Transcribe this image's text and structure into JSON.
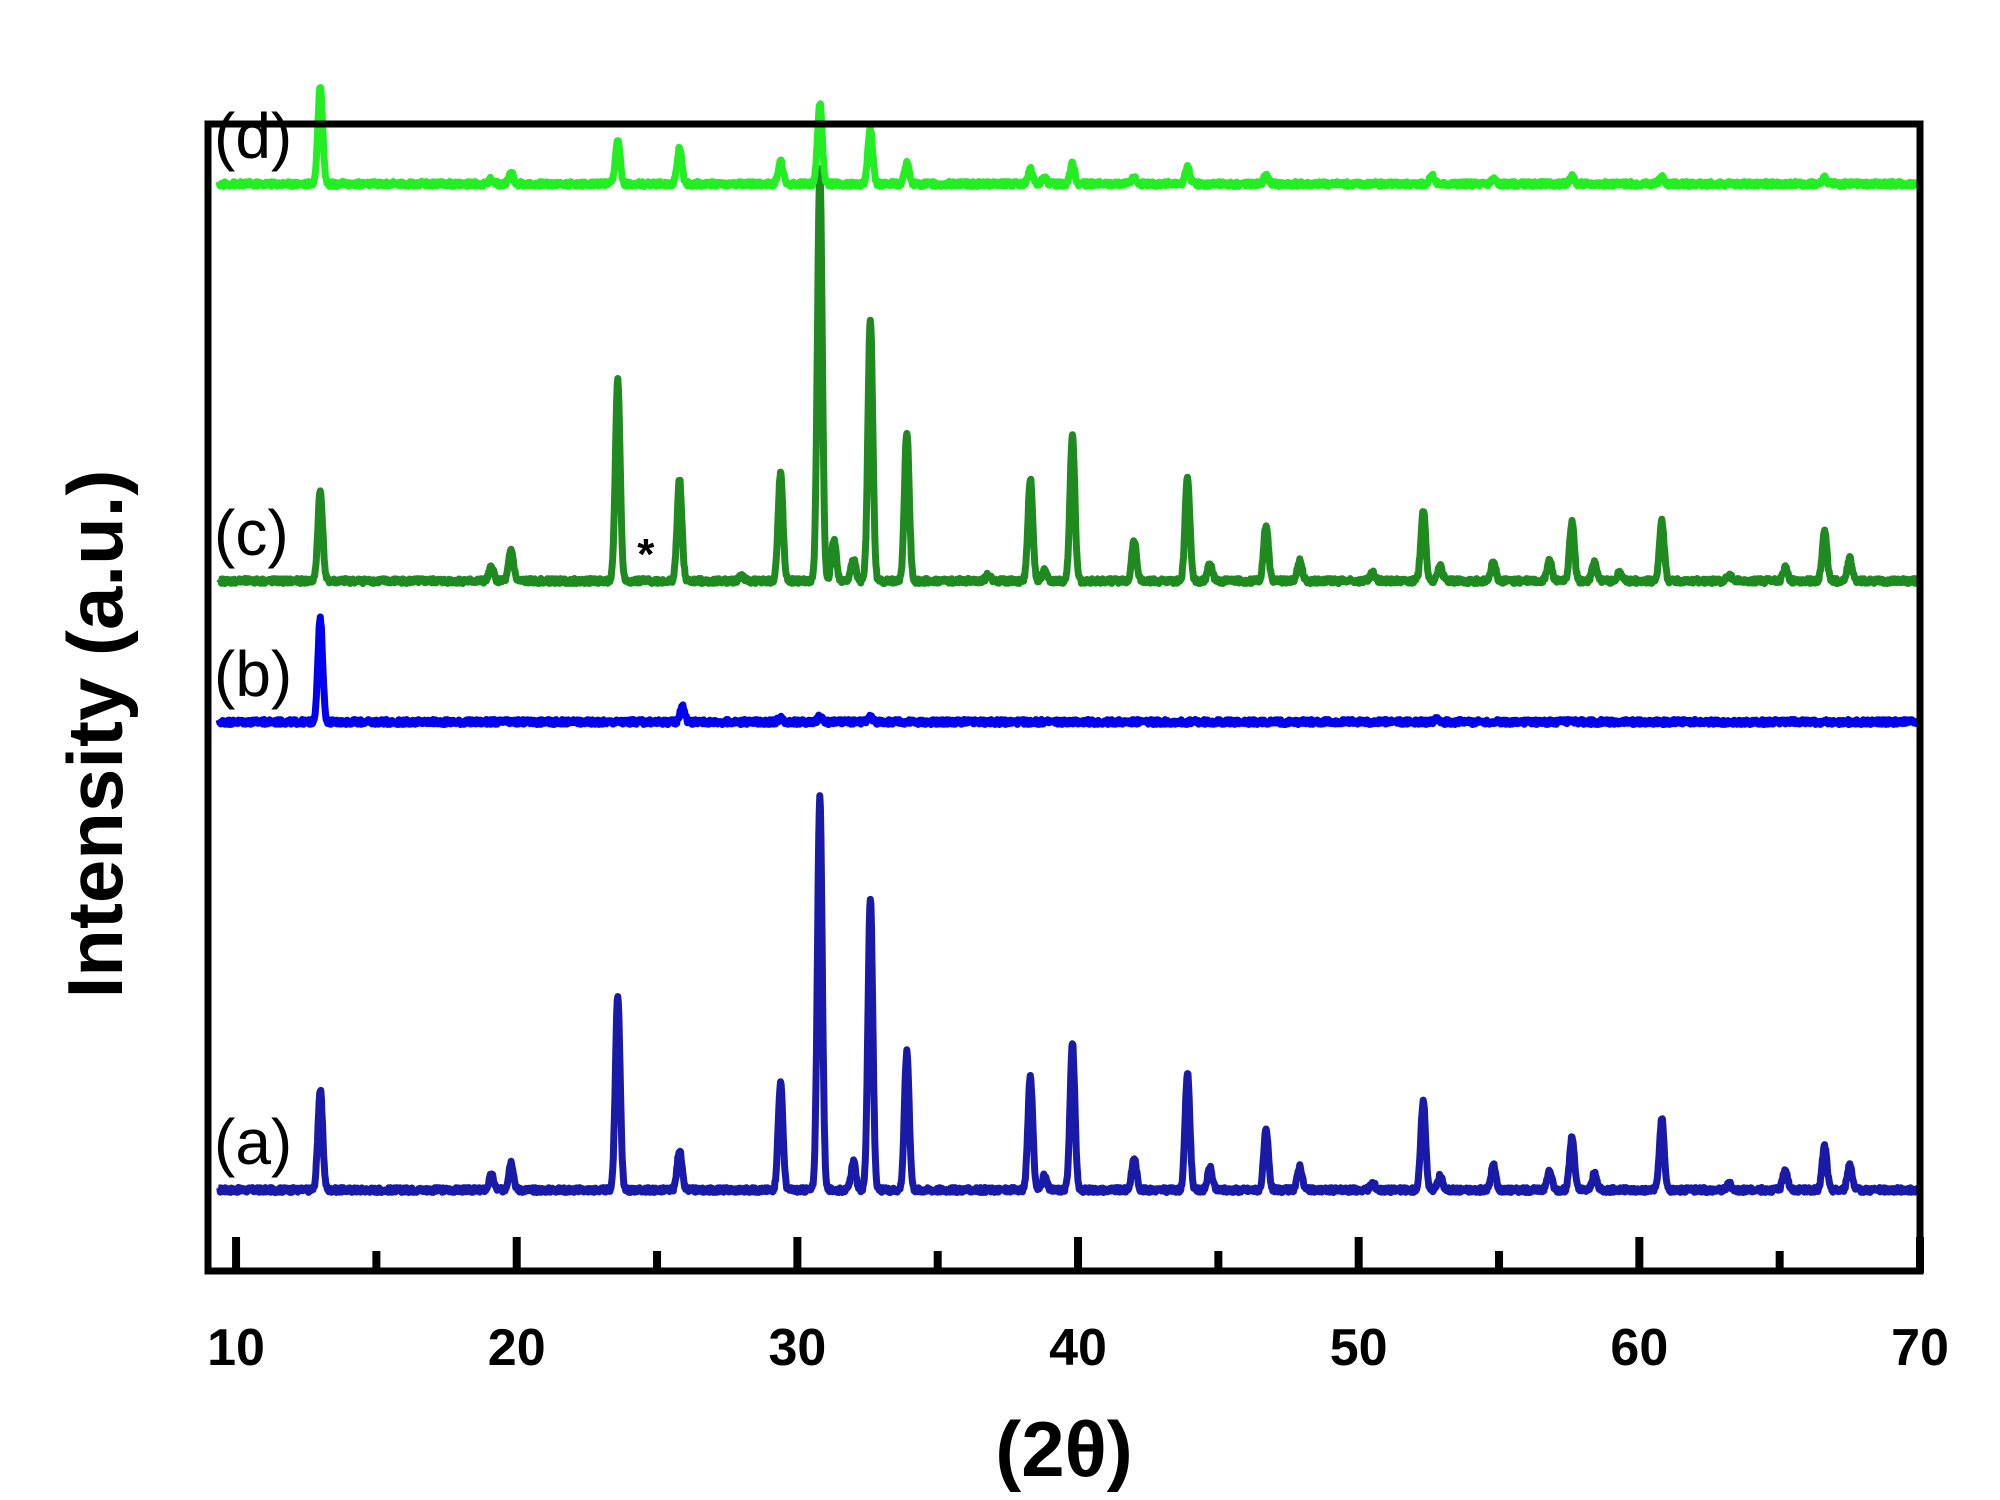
{
  "chart_data": {
    "type": "line",
    "xlabel": "(2θ)",
    "ylabel": "Intensity (a.u.)",
    "xlim": [
      9,
      70
    ],
    "x_ticks_major": [
      10,
      20,
      30,
      40,
      50,
      60,
      70
    ],
    "x_ticks_minor": [
      15,
      25,
      35,
      45,
      55,
      65
    ],
    "y_ticks": [],
    "grid": false,
    "legend": "none",
    "annotations": [
      {
        "text": "*",
        "x": 24.6,
        "series": "(c)"
      }
    ],
    "series": [
      {
        "name": "(a)",
        "color": "#1a1aa8",
        "baseline": 0,
        "peaks": [
          [
            13.0,
            100
          ],
          [
            19.1,
            15
          ],
          [
            19.8,
            28
          ],
          [
            23.6,
            195
          ],
          [
            25.8,
            40
          ],
          [
            29.4,
            107
          ],
          [
            30.8,
            392
          ],
          [
            32.0,
            28
          ],
          [
            32.6,
            292
          ],
          [
            33.9,
            138
          ],
          [
            38.3,
            115
          ],
          [
            38.8,
            14
          ],
          [
            39.8,
            147
          ],
          [
            42.0,
            32
          ],
          [
            43.9,
            117
          ],
          [
            44.7,
            22
          ],
          [
            46.7,
            59
          ],
          [
            47.9,
            24
          ],
          [
            50.5,
            7
          ],
          [
            52.3,
            89
          ],
          [
            52.9,
            14
          ],
          [
            54.8,
            25
          ],
          [
            56.8,
            19
          ],
          [
            57.6,
            53
          ],
          [
            58.4,
            16
          ],
          [
            60.8,
            71
          ],
          [
            63.2,
            6
          ],
          [
            65.2,
            21
          ],
          [
            66.6,
            44
          ],
          [
            67.5,
            26
          ]
        ]
      },
      {
        "name": "(b)",
        "color": "#0000ee",
        "baseline": 468,
        "peaks": [
          [
            13.0,
            103
          ],
          [
            25.9,
            16
          ],
          [
            29.4,
            4
          ],
          [
            30.8,
            5
          ],
          [
            32.6,
            5
          ],
          [
            52.8,
            4
          ]
        ]
      },
      {
        "name": "(c)",
        "color": "#1f8a1f",
        "baseline": 609,
        "peaks": [
          [
            13.0,
            90
          ],
          [
            19.1,
            14
          ],
          [
            19.8,
            31
          ],
          [
            23.6,
            201
          ],
          [
            25.8,
            101
          ],
          [
            28.0,
            6
          ],
          [
            29.4,
            108
          ],
          [
            30.8,
            411
          ],
          [
            31.3,
            42
          ],
          [
            32.0,
            22
          ],
          [
            32.6,
            263
          ],
          [
            33.9,
            149
          ],
          [
            36.8,
            6
          ],
          [
            38.3,
            102
          ],
          [
            38.8,
            10
          ],
          [
            39.8,
            147
          ],
          [
            42.0,
            41
          ],
          [
            43.9,
            103
          ],
          [
            44.7,
            18
          ],
          [
            46.7,
            56
          ],
          [
            47.9,
            21
          ],
          [
            50.5,
            8
          ],
          [
            52.3,
            71
          ],
          [
            52.9,
            16
          ],
          [
            54.8,
            19
          ],
          [
            56.8,
            21
          ],
          [
            57.6,
            59
          ],
          [
            58.4,
            19
          ],
          [
            59.3,
            9
          ],
          [
            60.8,
            60
          ],
          [
            63.2,
            6
          ],
          [
            65.2,
            13
          ],
          [
            66.6,
            49
          ],
          [
            67.5,
            22
          ]
        ]
      },
      {
        "name": "(d)",
        "color": "#22ee22",
        "baseline": 1006,
        "peaks": [
          [
            13.0,
            98
          ],
          [
            19.1,
            5
          ],
          [
            19.8,
            11
          ],
          [
            23.6,
            43
          ],
          [
            25.8,
            36
          ],
          [
            29.4,
            23
          ],
          [
            30.8,
            80
          ],
          [
            32.6,
            55
          ],
          [
            33.9,
            21
          ],
          [
            38.3,
            15
          ],
          [
            38.8,
            6
          ],
          [
            39.8,
            20
          ],
          [
            42.0,
            6
          ],
          [
            43.9,
            17
          ],
          [
            46.7,
            9
          ],
          [
            52.6,
            9
          ],
          [
            54.8,
            5
          ],
          [
            57.6,
            7
          ],
          [
            60.8,
            7
          ],
          [
            66.6,
            6
          ]
        ]
      }
    ]
  }
}
